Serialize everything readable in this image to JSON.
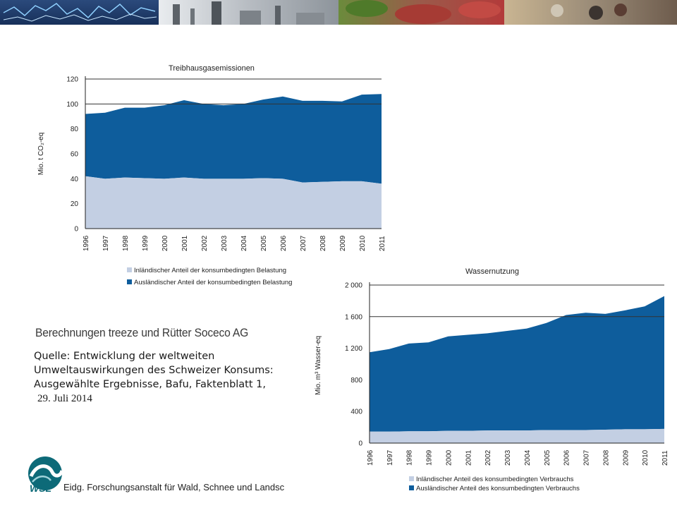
{
  "credit": "Berechnungen treeze und Rütter Soceco AG",
  "source": {
    "line1": "Quelle: Entwicklung der weltweiten",
    "line2": "Umweltauswirkungen des Schweizer Konsums:",
    "line3": "Ausgewählte Ergebnisse, Bafu, Faktenblatt 1,",
    "line4": "29. Juli 2014"
  },
  "footer": {
    "logo_text": "WSL",
    "institution": "Eidg. Forschungsanstalt für Wald, Schnee und Landsc"
  },
  "colors": {
    "domestic": "#c3cfe3",
    "foreign": "#0e5d9c",
    "banner": "#4a5560"
  },
  "chart_data": [
    {
      "type": "area",
      "stacked": true,
      "title": "Treibhausgasemissionen",
      "ylabel": "Mio. t CO₂-eq",
      "ylim": [
        0,
        120
      ],
      "yticks": [
        "0",
        "20",
        "40",
        "60",
        "80",
        "100",
        "120"
      ],
      "categories": [
        "1996",
        "1997",
        "1998",
        "1999",
        "2000",
        "2001",
        "2002",
        "2003",
        "2004",
        "2005",
        "2006",
        "2007",
        "2008",
        "2009",
        "2010",
        "2011"
      ],
      "series": [
        {
          "name": "Inländischer Anteil der konsumbedingten Belastung",
          "values": [
            42,
            40,
            41,
            40.5,
            40,
            41,
            40,
            40,
            40,
            40.5,
            40,
            37,
            37.5,
            38,
            38,
            36
          ]
        },
        {
          "name": "Ausländischer Anteil der konsumbedingten Belastung",
          "values": [
            50,
            53,
            56,
            56.5,
            59,
            62,
            60,
            59,
            60,
            63,
            66,
            65.5,
            65,
            64,
            69.5,
            72
          ]
        }
      ],
      "grid": false,
      "legend": "bottom"
    },
    {
      "type": "area",
      "stacked": true,
      "title": "Wassernutzung",
      "ylabel": "Mio. m³ Wasser-eq",
      "ylim": [
        0,
        2000
      ],
      "yticks": [
        "0",
        "400",
        "800",
        "1 200",
        "1 600",
        "2 000"
      ],
      "categories": [
        "1996",
        "1997",
        "1998",
        "1999",
        "2000",
        "2001",
        "2002",
        "2003",
        "2004",
        "2005",
        "2006",
        "2007",
        "2008",
        "2009",
        "2010",
        "2011"
      ],
      "series": [
        {
          "name": "Inländischer Anteil des konsumbedingten Verbrauchs",
          "values": [
            145,
            145,
            150,
            150,
            155,
            155,
            160,
            160,
            160,
            165,
            165,
            165,
            170,
            175,
            175,
            180
          ]
        },
        {
          "name": "Ausländischer Anteil des konsumbedingten Verbrauchs",
          "values": [
            1005,
            1045,
            1110,
            1125,
            1195,
            1215,
            1230,
            1260,
            1290,
            1355,
            1455,
            1485,
            1465,
            1505,
            1555,
            1680
          ]
        }
      ],
      "grid": false,
      "legend": "bottom"
    }
  ]
}
